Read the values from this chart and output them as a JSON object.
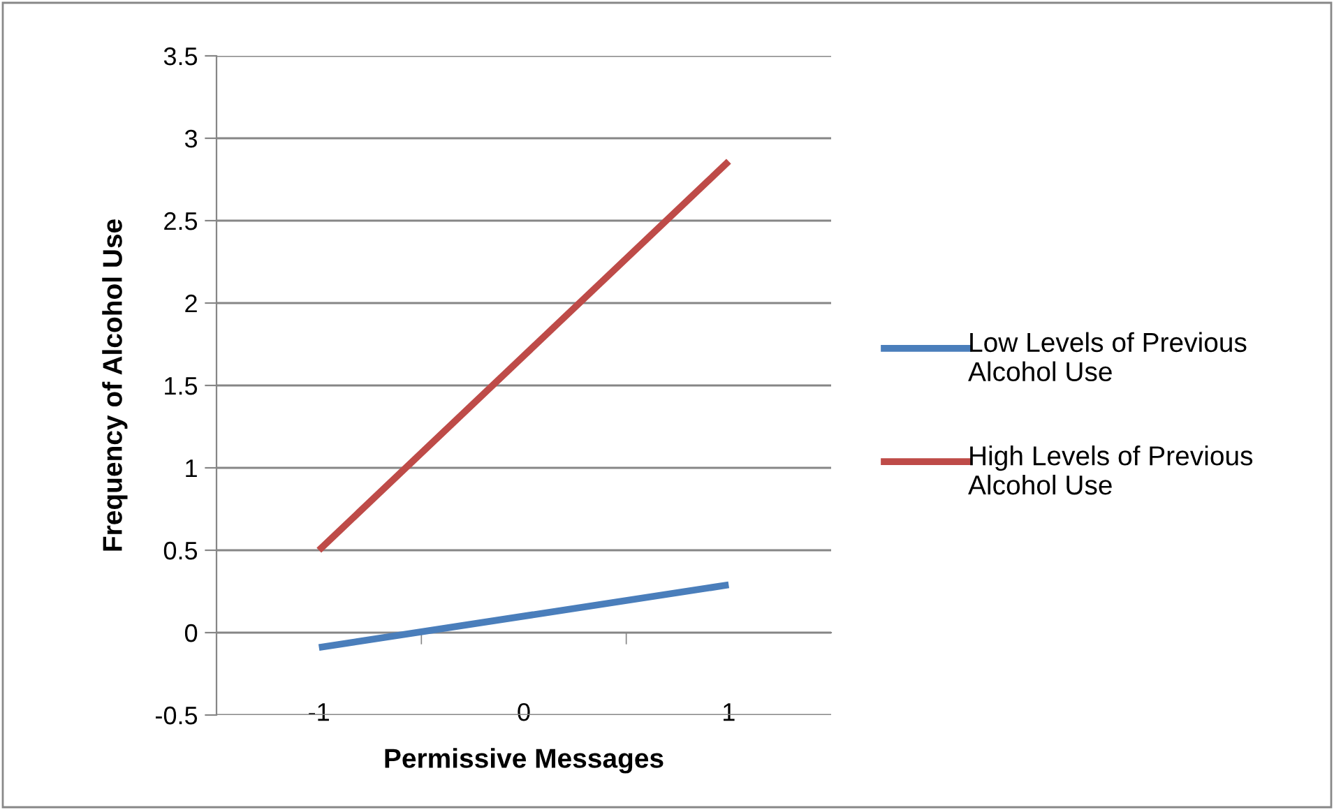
{
  "chart_data": {
    "type": "line",
    "xlabel": "Permissive Messages",
    "ylabel": "Frequency of Alcohol Use",
    "categories": [
      "-1",
      "0",
      "1"
    ],
    "series": [
      {
        "name": "Low Levels of Previous Alcohol Use",
        "color": "#4a7ebb",
        "values": [
          -0.09,
          0.1,
          0.29
        ]
      },
      {
        "name": "High Levels of Previous Alcohol Use",
        "color": "#be4b48",
        "values": [
          0.5,
          1.68,
          2.86
        ]
      }
    ],
    "ylim": [
      -0.5,
      3.5
    ],
    "yticks": [
      -0.5,
      0,
      0.5,
      1,
      1.5,
      2,
      2.5,
      3,
      3.5
    ],
    "grid": "y",
    "legend": "right",
    "marker": "none",
    "line_style": "solid"
  }
}
